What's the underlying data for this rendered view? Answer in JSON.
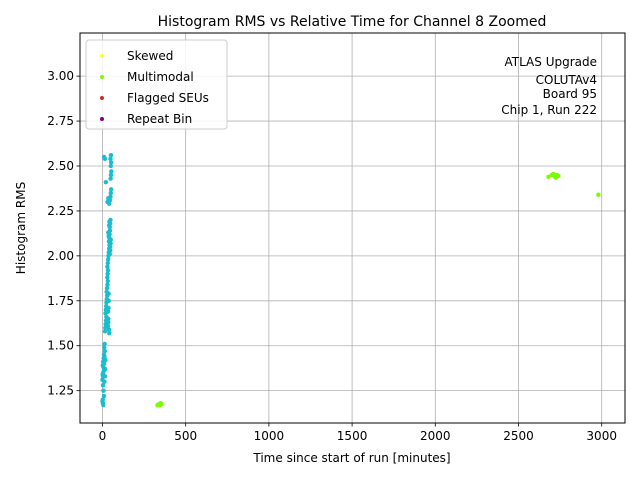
{
  "chart_data": {
    "type": "scatter",
    "title": "Histogram RMS vs Relative Time for Channel 8 Zoomed",
    "xlabel": "Time since start of run [minutes]",
    "ylabel": "Histogram RMS",
    "xlim": [
      -135,
      3140
    ],
    "ylim": [
      1.07,
      3.24
    ],
    "xticks": [
      0,
      500,
      1000,
      1500,
      2000,
      2500,
      3000
    ],
    "yticks": [
      1.25,
      1.5,
      1.75,
      2.0,
      2.25,
      2.5,
      2.75,
      3.0
    ],
    "xtick_labels": [
      "0",
      "500",
      "1000",
      "1500",
      "2000",
      "2500",
      "3000"
    ],
    "ytick_labels": [
      "1.25",
      "1.50",
      "1.75",
      "2.00",
      "2.25",
      "2.50",
      "2.75",
      "3.00"
    ],
    "grid": true,
    "legend_position": "top-left",
    "annotation": [
      "ATLAS Upgrade",
      "COLUTAv4",
      "Board 95",
      "Chip 1, Run 222"
    ],
    "series": [
      {
        "name": "",
        "color": "#17becf",
        "points": [
          [
            0,
            1.19
          ],
          [
            2,
            1.2
          ],
          [
            3,
            1.18
          ],
          [
            5,
            1.17
          ],
          [
            0,
            1.31
          ],
          [
            3,
            1.33
          ],
          [
            5,
            1.35
          ],
          [
            2,
            1.39
          ],
          [
            4,
            1.41
          ],
          [
            7,
            1.43
          ],
          [
            9,
            1.45
          ],
          [
            6,
            1.38
          ],
          [
            8,
            1.36
          ],
          [
            10,
            1.4
          ],
          [
            12,
            1.44
          ],
          [
            14,
            1.47
          ],
          [
            11,
            1.49
          ],
          [
            13,
            1.51
          ],
          [
            15,
            1.33
          ],
          [
            12,
            1.3
          ],
          [
            16,
            1.37
          ],
          [
            18,
            1.42
          ],
          [
            3,
            1.28
          ],
          [
            6,
            1.25
          ],
          [
            9,
            1.22
          ],
          [
            1,
            1.34
          ],
          [
            15,
            1.58
          ],
          [
            17,
            1.6
          ],
          [
            19,
            1.62
          ],
          [
            21,
            1.64
          ],
          [
            23,
            1.66
          ],
          [
            18,
            1.68
          ],
          [
            20,
            1.7
          ],
          [
            22,
            1.72
          ],
          [
            24,
            1.74
          ],
          [
            26,
            1.76
          ],
          [
            28,
            1.78
          ],
          [
            25,
            1.8
          ],
          [
            27,
            1.82
          ],
          [
            30,
            1.84
          ],
          [
            32,
            1.86
          ],
          [
            29,
            1.88
          ],
          [
            31,
            1.9
          ],
          [
            33,
            1.92
          ],
          [
            35,
            1.65
          ],
          [
            34,
            1.69
          ],
          [
            36,
            1.71
          ],
          [
            38,
            1.75
          ],
          [
            37,
            1.79
          ],
          [
            35,
            1.63
          ],
          [
            33,
            1.61
          ],
          [
            39,
            1.59
          ],
          [
            41,
            1.57
          ],
          [
            30,
            1.94
          ],
          [
            32,
            1.96
          ],
          [
            34,
            1.98
          ],
          [
            36,
            2.0
          ],
          [
            38,
            2.02
          ],
          [
            40,
            2.04
          ],
          [
            42,
            2.06
          ],
          [
            39,
            2.08
          ],
          [
            41,
            2.1
          ],
          [
            43,
            2.12
          ],
          [
            45,
            2.14
          ],
          [
            44,
            2.16
          ],
          [
            46,
            2.18
          ],
          [
            48,
            2.2
          ],
          [
            47,
            2.03
          ],
          [
            49,
            2.07
          ],
          [
            37,
            2.11
          ],
          [
            35,
            2.13
          ],
          [
            40,
            2.17
          ],
          [
            42,
            2.19
          ],
          [
            44,
            2.01
          ],
          [
            46,
            2.05
          ],
          [
            50,
            2.09
          ],
          [
            30,
            2.3
          ],
          [
            35,
            2.32
          ],
          [
            40,
            2.29
          ],
          [
            45,
            2.31
          ],
          [
            48,
            2.33
          ],
          [
            50,
            2.35
          ],
          [
            52,
            2.37
          ],
          [
            49,
            2.43
          ],
          [
            51,
            2.45
          ],
          [
            53,
            2.47
          ],
          [
            50,
            2.5
          ],
          [
            52,
            2.52
          ],
          [
            48,
            2.54
          ],
          [
            51,
            2.56
          ],
          [
            20,
            2.41
          ],
          [
            15,
            2.54
          ],
          [
            10,
            2.55
          ]
        ]
      },
      {
        "name": "Multimodal",
        "color": "#7cfc00",
        "points": [
          [
            330,
            1.17
          ],
          [
            340,
            1.175
          ],
          [
            350,
            1.18
          ],
          [
            345,
            1.17
          ],
          [
            355,
            1.175
          ],
          [
            2680,
            2.44
          ],
          [
            2700,
            2.45
          ],
          [
            2710,
            2.455
          ],
          [
            2720,
            2.44
          ],
          [
            2730,
            2.45
          ],
          [
            2725,
            2.435
          ],
          [
            2740,
            2.445
          ],
          [
            2980,
            2.34
          ]
        ]
      },
      {
        "name": "Skewed",
        "color": "#ffff33",
        "points": []
      },
      {
        "name": "Flagged SEUs",
        "color": "#d62728",
        "points": []
      },
      {
        "name": "Repeat Bin",
        "color": "#800080",
        "points": []
      }
    ],
    "legend": [
      {
        "label": "Skewed",
        "color": "#ffff33"
      },
      {
        "label": "Multimodal",
        "color": "#7cfc00"
      },
      {
        "label": "Flagged SEUs",
        "color": "#d62728"
      },
      {
        "label": "Repeat Bin",
        "color": "#800080"
      }
    ]
  }
}
